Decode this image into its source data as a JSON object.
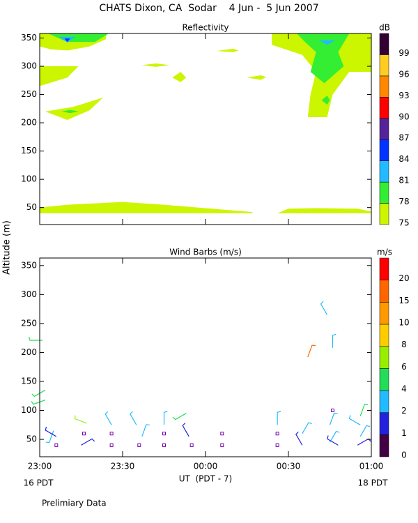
{
  "title": "CHATS Dixon, CA  Sodar    4 Jun -  5 Jun 2007",
  "note": "Prelimiary Data",
  "chart_data": [
    {
      "type": "contour",
      "title": "Reflectivity",
      "xlim": [
        0,
        120
      ],
      "xticks": [
        0,
        30,
        60,
        90,
        120
      ],
      "ylim": [
        20,
        358
      ],
      "yticks": [
        50,
        100,
        150,
        200,
        250,
        300,
        350
      ],
      "colorbar": {
        "unit": "dB",
        "levels": [
          75,
          78,
          81,
          84,
          87,
          90,
          93,
          96,
          99
        ],
        "colors": [
          "#ccf500",
          "#33ee33",
          "#22bbff",
          "#0033ff",
          "#552299",
          "#ff0000",
          "#ff8800",
          "#ffcc22",
          "#330033"
        ]
      },
      "regions": [
        {
          "level": 75,
          "x": [
            0,
            0,
            10,
            30,
            45,
            77,
            77
          ],
          "y": [
            40,
            50,
            55,
            60,
            55,
            42,
            40
          ]
        },
        {
          "level": 75,
          "x": [
            86,
            90,
            100,
            115,
            120,
            120
          ],
          "y": [
            40,
            48,
            49,
            48,
            43,
            40
          ]
        },
        {
          "level": 75,
          "x": [
            0,
            0,
            24,
            24,
            18,
            10,
            4
          ],
          "y": [
            335,
            358,
            358,
            348,
            335,
            328,
            330
          ]
        },
        {
          "level": 75,
          "x": [
            0,
            14,
            10,
            0
          ],
          "y": [
            300,
            300,
            280,
            265
          ]
        },
        {
          "level": 75,
          "x": [
            2,
            12,
            20,
            23,
            18,
            10
          ],
          "y": [
            220,
            228,
            240,
            245,
            222,
            205
          ]
        },
        {
          "level": 75,
          "x": [
            37,
            42,
            47,
            42
          ],
          "y": [
            302,
            305,
            302,
            299
          ]
        },
        {
          "level": 75,
          "x": [
            48,
            51,
            53,
            51
          ],
          "y": [
            280,
            290,
            280,
            272
          ]
        },
        {
          "level": 75,
          "x": [
            64,
            70,
            72,
            70
          ],
          "y": [
            327,
            331,
            328,
            325
          ]
        },
        {
          "level": 75,
          "x": [
            75,
            80,
            82,
            80
          ],
          "y": [
            280,
            284,
            281,
            276
          ]
        },
        {
          "level": 75,
          "x": [
            84,
            84,
            95,
            100,
            98,
            97,
            104,
            106,
            112,
            120,
            120
          ],
          "y": [
            358,
            338,
            320,
            290,
            250,
            210,
            210,
            250,
            290,
            290,
            358
          ]
        },
        {
          "level": 78,
          "x": [
            3,
            10,
            20,
            25
          ],
          "y": [
            358,
            343,
            343,
            358
          ]
        },
        {
          "level": 78,
          "x": [
            8,
            11,
            14,
            11
          ],
          "y": [
            220,
            223,
            220,
            217
          ]
        },
        {
          "level": 78,
          "x": [
            93,
            96,
            100,
            98,
            103,
            110,
            108,
            112
          ],
          "y": [
            358,
            343,
            325,
            290,
            270,
            300,
            325,
            358
          ]
        },
        {
          "level": 78,
          "x": [
            102,
            104,
            105,
            104
          ],
          "y": [
            240,
            248,
            240,
            232
          ]
        },
        {
          "level": 81,
          "x": [
            7,
            10,
            13
          ],
          "y": [
            352,
            342,
            352
          ]
        },
        {
          "level": 81,
          "x": [
            101,
            104,
            107
          ],
          "y": [
            346,
            338,
            346
          ]
        },
        {
          "level": 84,
          "x": [
            9,
            10,
            11
          ],
          "y": [
            349,
            343,
            349
          ]
        }
      ]
    },
    {
      "type": "barbs",
      "title": "Wind Barbs (m/s)",
      "xlabel": "UT  (PDT - 7)",
      "ylabel": "Altitude (m)",
      "x_start_label": "16 PDT",
      "x_end_label": "18 PDT",
      "xlim": [
        0,
        120
      ],
      "xticks": [
        {
          "value": 0,
          "label": "23:00"
        },
        {
          "value": 30,
          "label": "23:30"
        },
        {
          "value": 60,
          "label": "00:00"
        },
        {
          "value": 90,
          "label": "00:30"
        },
        {
          "value": 120,
          "label": "01:00"
        }
      ],
      "ylim": [
        20,
        363
      ],
      "yticks": [
        50,
        100,
        150,
        200,
        250,
        300,
        350
      ],
      "colorbar": {
        "unit": "m/s",
        "levels": [
          0,
          1,
          2,
          4,
          6,
          8,
          10,
          15,
          20
        ],
        "colors": [
          "#440044",
          "#2222dd",
          "#22bbff",
          "#22dd55",
          "#99ee00",
          "#ffcc00",
          "#ff9900",
          "#ff6600",
          "#ff0000"
        ]
      },
      "barbs": {
        "x": [
          1,
          2,
          2,
          5,
          6,
          6,
          15,
          16,
          17,
          26,
          26,
          26,
          35,
          36,
          37,
          45,
          45,
          45,
          54,
          55,
          53,
          66,
          66,
          86,
          86,
          86,
          95,
          95,
          97,
          104,
          106,
          106,
          105,
          105,
          108,
          116,
          116,
          116,
          115
        ],
        "y": [
          221,
          135,
          118,
          65,
          55,
          40,
          40,
          60,
          78,
          60,
          75,
          40,
          75,
          40,
          55,
          60,
          75,
          40,
          55,
          40,
          95,
          60,
          40,
          60,
          40,
          75,
          40,
          60,
          192,
          265,
          208,
          100,
          45,
          75,
          40,
          90,
          75,
          55,
          40
        ],
        "speed": [
          5,
          5,
          5,
          3,
          1,
          0,
          1,
          0,
          7,
          0,
          3,
          0,
          3,
          0,
          3,
          0,
          3,
          0,
          1,
          0,
          5,
          0,
          0,
          0,
          0,
          3,
          1,
          3,
          15,
          3,
          3,
          0,
          3,
          3,
          1,
          5,
          3,
          3,
          1
        ],
        "dir": [
          270,
          240,
          250,
          200,
          300,
          0,
          60,
          0,
          290,
          0,
          330,
          0,
          330,
          0,
          20,
          0,
          0,
          0,
          330,
          0,
          240,
          0,
          0,
          0,
          0,
          0,
          330,
          30,
          20,
          330,
          0,
          0,
          30,
          20,
          300,
          20,
          300,
          30,
          60
        ]
      }
    }
  ]
}
